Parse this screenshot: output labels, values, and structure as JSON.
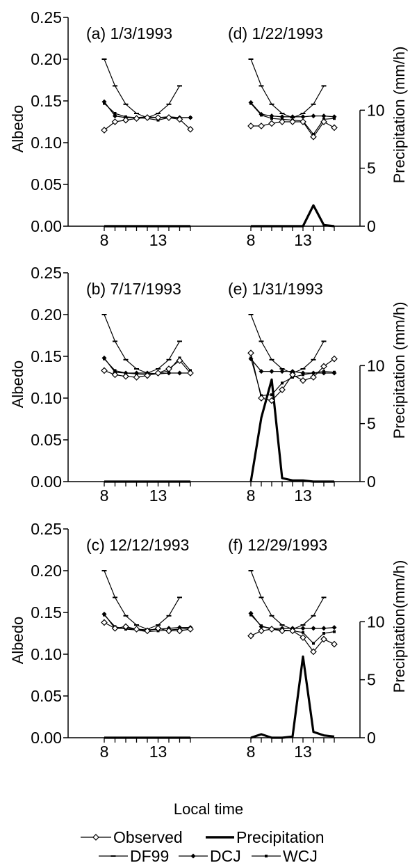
{
  "figure": {
    "xlabel": "Local time",
    "left_ylabel": "Albedo",
    "right_ylabels": [
      "Precipitation (mm/h)",
      "Precipitation (mm/h)",
      "Precipitation(mm/h)"
    ],
    "left_ticks": [
      "0.00",
      "0.05",
      "0.10",
      "0.15",
      "0.20",
      "0.25"
    ],
    "right_ticks": [
      "0",
      "5",
      "10"
    ],
    "x_ticks": [
      "8",
      "13"
    ]
  },
  "legend": {
    "observed": "Observed",
    "precipitation": "Precipitation",
    "df99": "DF99",
    "dcj": "DCJ",
    "wcj": "WCJ"
  },
  "chart_data": [
    {
      "type": "line",
      "title": "(a) 1/3/1993",
      "x": [
        8,
        9,
        10,
        11,
        12,
        13,
        14,
        15,
        16
      ],
      "ylim": [
        0,
        0.25
      ],
      "y2lim": [
        0,
        18
      ],
      "series": [
        {
          "name": "Observed",
          "values": [
            0.115,
            0.125,
            0.127,
            0.129,
            0.13,
            0.13,
            0.13,
            0.128,
            0.116
          ]
        },
        {
          "name": "DF99",
          "values": [
            0.2,
            0.168,
            0.146,
            0.135,
            0.13,
            0.135,
            0.146,
            0.168,
            null
          ]
        },
        {
          "name": "DCJ",
          "values": [
            0.149,
            0.132,
            0.13,
            0.13,
            0.131,
            0.13,
            0.131,
            0.13,
            0.13
          ]
        },
        {
          "name": "WCJ",
          "values": [
            0.147,
            0.135,
            0.131,
            0.13,
            0.129,
            0.127,
            0.13,
            0.13,
            0.13
          ]
        },
        {
          "name": "Precipitation",
          "values": [
            0,
            0,
            0,
            0,
            0,
            0,
            0,
            0,
            0
          ]
        }
      ]
    },
    {
      "type": "line",
      "title": "(d) 1/22/1993",
      "x": [
        8,
        9,
        10,
        11,
        12,
        13,
        14,
        15,
        16
      ],
      "ylim": [
        0,
        0.25
      ],
      "y2lim": [
        0,
        18
      ],
      "series": [
        {
          "name": "Observed",
          "values": [
            0.12,
            0.12,
            0.123,
            0.125,
            0.125,
            0.125,
            0.107,
            0.125,
            0.118
          ]
        },
        {
          "name": "DF99",
          "values": [
            0.2,
            0.168,
            0.146,
            0.135,
            0.13,
            0.135,
            0.146,
            0.168,
            null
          ]
        },
        {
          "name": "DCJ",
          "values": [
            0.148,
            0.134,
            0.132,
            0.131,
            0.131,
            0.131,
            0.132,
            0.132,
            0.131
          ]
        },
        {
          "name": "WCJ",
          "values": [
            0.147,
            0.133,
            0.129,
            0.128,
            0.127,
            0.126,
            0.11,
            0.128,
            0.129
          ]
        },
        {
          "name": "Precipitation",
          "values": [
            0,
            0,
            0,
            0,
            0,
            0,
            1.8,
            0.1,
            0
          ]
        }
      ]
    },
    {
      "type": "line",
      "title": "(b) 7/17/1993",
      "x": [
        8,
        9,
        10,
        11,
        12,
        13,
        14,
        15,
        16
      ],
      "ylim": [
        0,
        0.25
      ],
      "y2lim": [
        0,
        18
      ],
      "series": [
        {
          "name": "Observed",
          "values": [
            0.133,
            0.128,
            0.126,
            0.125,
            0.127,
            0.13,
            0.135,
            0.145,
            0.13
          ]
        },
        {
          "name": "DF99",
          "values": [
            0.2,
            0.168,
            0.146,
            0.135,
            0.13,
            0.135,
            0.146,
            0.168,
            null
          ]
        },
        {
          "name": "DCJ",
          "values": [
            0.148,
            0.131,
            0.13,
            0.13,
            0.13,
            0.129,
            0.13,
            0.13,
            0.13
          ]
        },
        {
          "name": "WCJ",
          "values": [
            0.147,
            0.133,
            0.13,
            0.129,
            0.128,
            0.129,
            0.133,
            0.148,
            0.133
          ]
        },
        {
          "name": "Precipitation",
          "values": [
            0,
            0,
            0,
            0,
            0,
            0,
            0,
            0,
            0
          ]
        }
      ]
    },
    {
      "type": "line",
      "title": "(e) 1/31/1993",
      "x": [
        8,
        9,
        10,
        11,
        12,
        13,
        14,
        15,
        16
      ],
      "ylim": [
        0,
        0.25
      ],
      "y2lim": [
        0,
        18
      ],
      "series": [
        {
          "name": "Observed",
          "values": [
            0.154,
            0.1,
            0.097,
            0.11,
            0.128,
            0.121,
            0.125,
            0.138,
            0.147
          ]
        },
        {
          "name": "DF99",
          "values": [
            0.2,
            0.168,
            0.146,
            0.135,
            0.13,
            0.135,
            0.146,
            0.168,
            null
          ]
        },
        {
          "name": "DCJ",
          "values": [
            0.147,
            0.132,
            0.132,
            0.132,
            0.132,
            0.13,
            0.13,
            0.13,
            0.13
          ]
        },
        {
          "name": "WCJ",
          "values": [
            0.148,
            0.103,
            0.104,
            0.118,
            0.125,
            0.128,
            0.13,
            0.132,
            0.131
          ]
        },
        {
          "name": "Precipitation",
          "values": [
            0,
            5.5,
            8.8,
            0.3,
            0.1,
            0.1,
            0,
            0,
            0
          ]
        }
      ]
    },
    {
      "type": "line",
      "title": "(c) 12/12/1993",
      "x": [
        8,
        9,
        10,
        11,
        12,
        13,
        14,
        15,
        16
      ],
      "ylim": [
        0,
        0.25
      ],
      "y2lim": [
        0,
        18
      ],
      "series": [
        {
          "name": "Observed",
          "values": [
            0.138,
            0.131,
            0.133,
            0.13,
            0.128,
            0.131,
            0.128,
            0.128,
            0.13
          ]
        },
        {
          "name": "DF99",
          "values": [
            0.2,
            0.168,
            0.146,
            0.135,
            0.13,
            0.135,
            0.146,
            0.168,
            null
          ]
        },
        {
          "name": "DCJ",
          "values": [
            0.148,
            0.131,
            0.131,
            0.13,
            0.129,
            0.13,
            0.131,
            0.132,
            0.132
          ]
        },
        {
          "name": "WCJ",
          "values": [
            0.147,
            0.133,
            0.13,
            0.129,
            0.127,
            0.128,
            0.129,
            0.13,
            0.131
          ]
        },
        {
          "name": "Precipitation",
          "values": [
            0,
            0,
            0,
            0,
            0,
            0,
            0,
            0,
            0
          ]
        }
      ]
    },
    {
      "type": "line",
      "title": "(f) 12/29/1993",
      "x": [
        8,
        9,
        10,
        11,
        12,
        13,
        14,
        15,
        16
      ],
      "ylim": [
        0,
        0.25
      ],
      "y2lim": [
        0,
        18
      ],
      "series": [
        {
          "name": "Observed",
          "values": [
            0.122,
            0.128,
            0.13,
            0.128,
            0.128,
            0.12,
            0.103,
            0.118,
            0.112
          ]
        },
        {
          "name": "DF99",
          "values": [
            0.2,
            0.168,
            0.146,
            0.135,
            0.13,
            0.135,
            0.146,
            0.168,
            null
          ]
        },
        {
          "name": "DCJ",
          "values": [
            0.149,
            0.133,
            0.131,
            0.131,
            0.131,
            0.131,
            0.131,
            0.131,
            0.132
          ]
        },
        {
          "name": "WCJ",
          "values": [
            0.147,
            0.134,
            0.13,
            0.129,
            0.128,
            0.126,
            0.113,
            0.125,
            0.127
          ]
        },
        {
          "name": "Precipitation",
          "values": [
            0,
            0.3,
            0,
            0,
            0.1,
            7,
            0.5,
            0.2,
            0.1
          ]
        }
      ]
    }
  ]
}
